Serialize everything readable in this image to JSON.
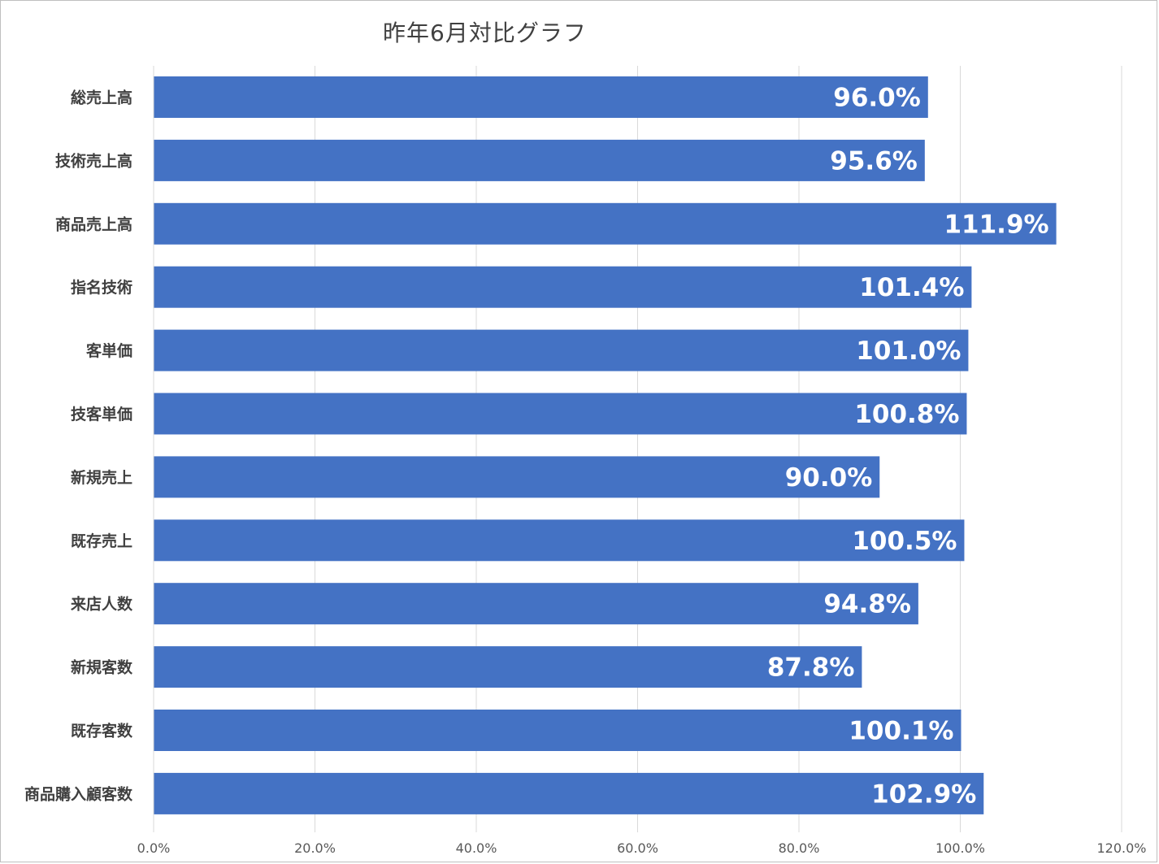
{
  "chart_data": {
    "type": "bar",
    "orientation": "horizontal",
    "title": "昨年6月対比グラフ",
    "categories": [
      "総売上高",
      "技術売上高",
      "商品売上高",
      "指名技術",
      "客単価",
      "技客単価",
      "新規売上",
      "既存売上",
      "来店人数",
      "新規客数",
      "既存客数",
      "商品購入顧客数"
    ],
    "values": [
      96.0,
      95.6,
      111.9,
      101.4,
      101.0,
      100.8,
      90.0,
      100.5,
      94.8,
      87.8,
      100.1,
      102.9
    ],
    "value_labels": [
      "96.0%",
      "95.6%",
      "111.9%",
      "101.4%",
      "101.0%",
      "100.8%",
      "90.0%",
      "100.5%",
      "94.8%",
      "87.8%",
      "100.1%",
      "102.9%"
    ],
    "xticks": [
      "0.0%",
      "20.0%",
      "40.0%",
      "60.0%",
      "80.0%",
      "100.0%",
      "120.0%"
    ],
    "xlim": [
      0,
      120
    ],
    "grid": true,
    "bar_color": "#4472c4",
    "label_color": "#ffffff"
  }
}
